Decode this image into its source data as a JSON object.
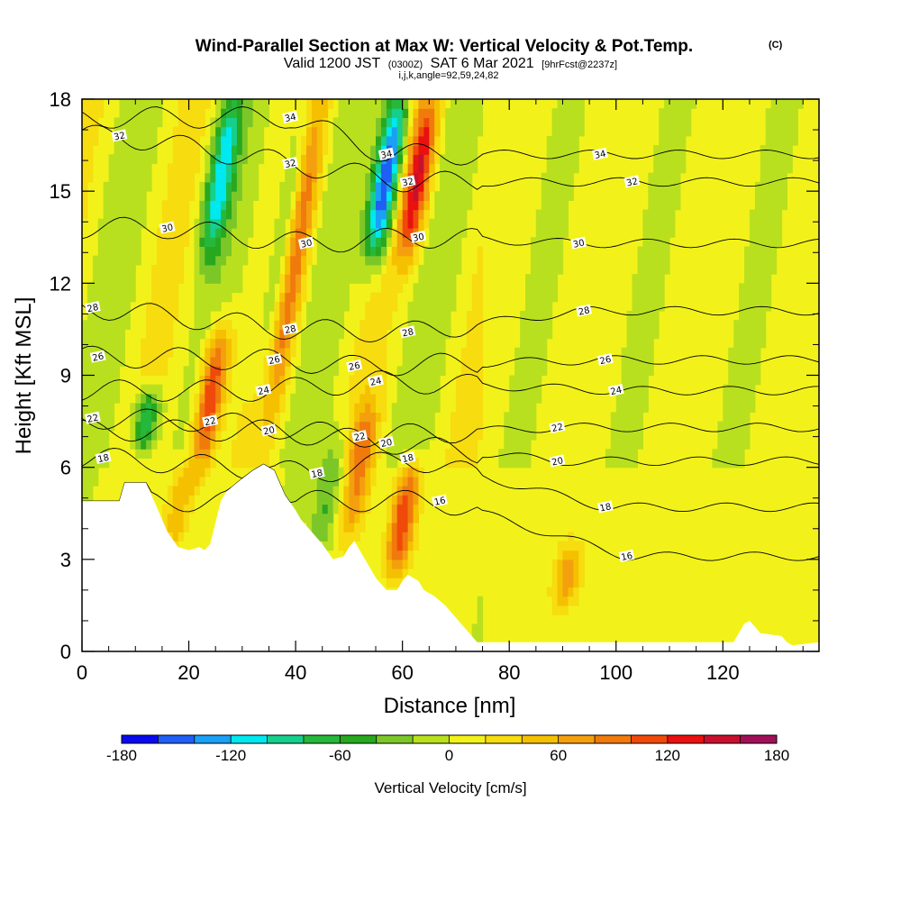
{
  "chart_data": {
    "type": "heatmap",
    "title": "Wind-Parallel Section at Max W: Vertical Velocity & Pot.Temp.",
    "title_mark": "(C)",
    "subtitle": {
      "valid": "Valid 1200 JST",
      "utc": "(0300Z)",
      "date": "SAT 6 Mar 2021",
      "forecast": "[9hrFcst@2237z]",
      "indices": "i,j,k,angle=92,59,24,82"
    },
    "xlabel": "Distance [nm]",
    "ylabel": "Height [Kft MSL]",
    "xlim": [
      0,
      138
    ],
    "ylim": [
      0,
      18
    ],
    "xticks": [
      0,
      20,
      40,
      60,
      80,
      100,
      120
    ],
    "yticks": [
      0,
      3,
      6,
      9,
      12,
      15,
      18
    ],
    "colorbar": {
      "label": "Vertical Velocity [cm/s]",
      "min": -180,
      "max": 180,
      "step": 20,
      "tick_values": [
        -180,
        -120,
        -60,
        0,
        60,
        120,
        180
      ],
      "tick_labels": [
        "-180",
        "-120",
        "-60",
        "0",
        "60",
        "120",
        "180"
      ],
      "colors": [
        "#0a0af0",
        "#1f5ff5",
        "#1aa0f5",
        "#00e8f0",
        "#16cf8c",
        "#26b83a",
        "#28a81e",
        "#7cc728",
        "#b9e01e",
        "#f2f21a",
        "#f7dc10",
        "#f5c000",
        "#f4a00e",
        "#f07a0c",
        "#f04a0a",
        "#ea1010",
        "#c8102e",
        "#a01058",
        "#7e1070"
      ]
    },
    "vertical_velocity_cells": {
      "note_units": "cm/s",
      "background": 6,
      "updrafts": [
        {
          "x": 24,
          "z_min": 6.0,
          "z_max": 10.5,
          "w": 130
        },
        {
          "x": 40,
          "z_min": 8.0,
          "z_max": 18,
          "w": 90
        },
        {
          "x": 60,
          "z_min": 2.5,
          "z_max": 6.0,
          "w": 120
        },
        {
          "x": 63,
          "z_min": 13,
          "z_max": 18,
          "w": 130
        },
        {
          "x": 52,
          "z_min": 4.0,
          "z_max": 8.0,
          "w": 75
        },
        {
          "x": 18,
          "z_min": 3.3,
          "z_max": 6.0,
          "w": 55
        },
        {
          "x": 91,
          "z_min": 1.5,
          "z_max": 3.5,
          "w": 60
        }
      ],
      "downdrafts": [
        {
          "x": 12,
          "z_min": 6.5,
          "z_max": 8.5,
          "w": -100
        },
        {
          "x": 26,
          "z_min": 13,
          "z_max": 18,
          "w": -110
        },
        {
          "x": 57,
          "z_min": 13,
          "z_max": 18,
          "w": -180
        },
        {
          "x": 46,
          "z_min": 3.0,
          "z_max": 7.0,
          "w": -50
        },
        {
          "x": 38,
          "z_min": 9.0,
          "z_max": 18,
          "w": -60
        }
      ]
    },
    "potential_temperature_labels": [
      {
        "x": 7,
        "z": 16.8,
        "text": "32"
      },
      {
        "x": 16,
        "z": 13.8,
        "text": "30"
      },
      {
        "x": 2,
        "z": 11.2,
        "text": "28"
      },
      {
        "x": 3,
        "z": 9.6,
        "text": "26"
      },
      {
        "x": 2,
        "z": 7.6,
        "text": "22"
      },
      {
        "x": 4,
        "z": 6.3,
        "text": "18"
      },
      {
        "x": 39,
        "z": 17.4,
        "text": "34"
      },
      {
        "x": 39,
        "z": 15.9,
        "text": "32"
      },
      {
        "x": 42,
        "z": 13.3,
        "text": "30"
      },
      {
        "x": 39,
        "z": 10.5,
        "text": "28"
      },
      {
        "x": 36,
        "z": 9.5,
        "text": "26"
      },
      {
        "x": 34,
        "z": 8.5,
        "text": "24"
      },
      {
        "x": 35,
        "z": 7.2,
        "text": "20"
      },
      {
        "x": 24,
        "z": 7.5,
        "text": "22"
      },
      {
        "x": 44,
        "z": 5.8,
        "text": "18"
      },
      {
        "x": 51,
        "z": 9.3,
        "text": "26"
      },
      {
        "x": 55,
        "z": 8.8,
        "text": "24"
      },
      {
        "x": 52,
        "z": 7.0,
        "text": "22"
      },
      {
        "x": 57,
        "z": 6.8,
        "text": "20"
      },
      {
        "x": 61,
        "z": 6.3,
        "text": "18"
      },
      {
        "x": 57,
        "z": 16.2,
        "text": "34"
      },
      {
        "x": 61,
        "z": 15.3,
        "text": "32"
      },
      {
        "x": 63,
        "z": 13.5,
        "text": "30"
      },
      {
        "x": 61,
        "z": 10.4,
        "text": "28"
      },
      {
        "x": 67,
        "z": 4.9,
        "text": "16"
      },
      {
        "x": 97,
        "z": 16.2,
        "text": "34"
      },
      {
        "x": 103,
        "z": 15.3,
        "text": "32"
      },
      {
        "x": 93,
        "z": 13.3,
        "text": "30"
      },
      {
        "x": 94,
        "z": 11.1,
        "text": "28"
      },
      {
        "x": 98,
        "z": 9.5,
        "text": "26"
      },
      {
        "x": 100,
        "z": 8.5,
        "text": "24"
      },
      {
        "x": 89,
        "z": 7.3,
        "text": "22"
      },
      {
        "x": 89,
        "z": 6.2,
        "text": "20"
      },
      {
        "x": 98,
        "z": 4.7,
        "text": "18"
      },
      {
        "x": 102,
        "z": 3.1,
        "text": "16"
      }
    ],
    "terrain": [
      [
        0,
        4.9
      ],
      [
        7,
        4.9
      ],
      [
        8,
        5.5
      ],
      [
        12,
        5.5
      ],
      [
        13,
        5.1
      ],
      [
        15,
        4.3
      ],
      [
        16,
        3.9
      ],
      [
        18,
        3.4
      ],
      [
        20,
        3.3
      ],
      [
        22,
        3.4
      ],
      [
        23,
        3.3
      ],
      [
        24,
        3.5
      ],
      [
        25,
        4.2
      ],
      [
        26,
        4.9
      ],
      [
        27,
        5.2
      ],
      [
        29,
        5.5
      ],
      [
        32,
        5.9
      ],
      [
        34,
        6.1
      ],
      [
        36,
        5.9
      ],
      [
        37,
        5.5
      ],
      [
        38,
        5.1
      ],
      [
        40,
        4.6
      ],
      [
        41,
        4.3
      ],
      [
        43,
        3.9
      ],
      [
        45,
        3.5
      ],
      [
        47,
        3.0
      ],
      [
        49,
        3.1
      ],
      [
        50,
        3.4
      ],
      [
        51,
        3.6
      ],
      [
        52,
        3.3
      ],
      [
        54,
        2.7
      ],
      [
        55,
        2.4
      ],
      [
        56,
        2.2
      ],
      [
        57,
        2.0
      ],
      [
        59,
        2.0
      ],
      [
        60,
        2.3
      ],
      [
        61,
        2.5
      ],
      [
        63,
        2.3
      ],
      [
        64,
        2.0
      ],
      [
        66,
        1.8
      ],
      [
        68,
        1.5
      ],
      [
        70,
        1.1
      ],
      [
        72,
        0.7
      ],
      [
        74,
        0.3
      ],
      [
        80,
        0.3
      ],
      [
        122,
        0.3
      ],
      [
        123,
        0.6
      ],
      [
        124,
        0.9
      ],
      [
        125,
        1.0
      ],
      [
        126,
        0.8
      ],
      [
        127,
        0.6
      ],
      [
        131,
        0.5
      ],
      [
        132,
        0.3
      ],
      [
        133,
        0.2
      ],
      [
        138,
        0.3
      ]
    ]
  }
}
